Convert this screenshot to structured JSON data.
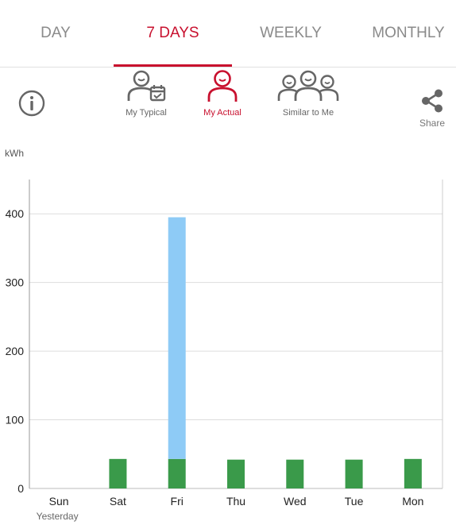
{
  "tabs": [
    {
      "label": "DAY",
      "active": false
    },
    {
      "label": "7 DAYS",
      "active": true
    },
    {
      "label": "WEEKLY",
      "active": false
    },
    {
      "label": "MONTHLY",
      "active": false
    }
  ],
  "toolbar": {
    "info_icon": "info-circle-icon",
    "views": [
      {
        "label": "My Typical",
        "icon": "person-calendar-icon",
        "active": false
      },
      {
        "label": "My Actual",
        "icon": "person-smile-icon",
        "active": true
      },
      {
        "label": "Similar to Me",
        "icon": "people-group-icon",
        "active": false
      }
    ],
    "share": {
      "label": "Share",
      "icon": "share-icon"
    }
  },
  "colors": {
    "accent": "#c8102e",
    "bar_green": "#3a9a4a",
    "bar_blue": "#8ecbf6",
    "gray_icon": "#666666"
  },
  "chart_data": {
    "type": "bar",
    "ylabel": "kWh",
    "ylim": [
      0,
      450
    ],
    "yticks": [
      0,
      100,
      200,
      300,
      400
    ],
    "categories": [
      "Sun",
      "Sat",
      "Fri",
      "Thu",
      "Wed",
      "Tue",
      "Mon"
    ],
    "category_sublabels": [
      "Yesterday",
      "",
      "",
      "",
      "",
      "",
      ""
    ],
    "series": [
      {
        "color": "#3a9a4a",
        "values": [
          0,
          43,
          43,
          42,
          42,
          42,
          43
        ]
      },
      {
        "color": "#8ecbf6",
        "values": [
          0,
          0,
          352,
          0,
          0,
          0,
          0
        ]
      }
    ],
    "stacked": true,
    "grid": true
  }
}
